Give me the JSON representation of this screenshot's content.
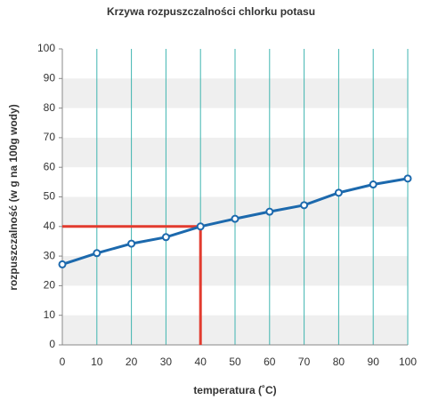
{
  "chart_data": {
    "type": "line",
    "title": "Krzywa rozpuszczalności chlorku potasu",
    "x_label": "temperatura (˚C)",
    "y_label": "rozpuszczalność (w g na 100g wody)",
    "x": [
      0,
      10,
      20,
      30,
      40,
      50,
      60,
      70,
      80,
      90,
      100
    ],
    "series": [
      {
        "color": "#1c69ad",
        "values": [
          27.2,
          31,
          34.2,
          36.4,
          40,
          42.6,
          45,
          47.2,
          51.4,
          54.2,
          56.2
        ]
      }
    ],
    "xlim": [
      0,
      100
    ],
    "xticks": [
      0,
      10,
      20,
      30,
      40,
      50,
      60,
      70,
      80,
      90,
      100
    ],
    "ylim": [
      0,
      100
    ],
    "yticks": [
      0,
      10,
      20,
      30,
      40,
      50,
      60,
      70,
      80,
      90,
      100
    ],
    "grid_color": "#3fb5b0",
    "guide": {
      "x": 40,
      "y": 40,
      "color": "#e23b2f"
    }
  }
}
